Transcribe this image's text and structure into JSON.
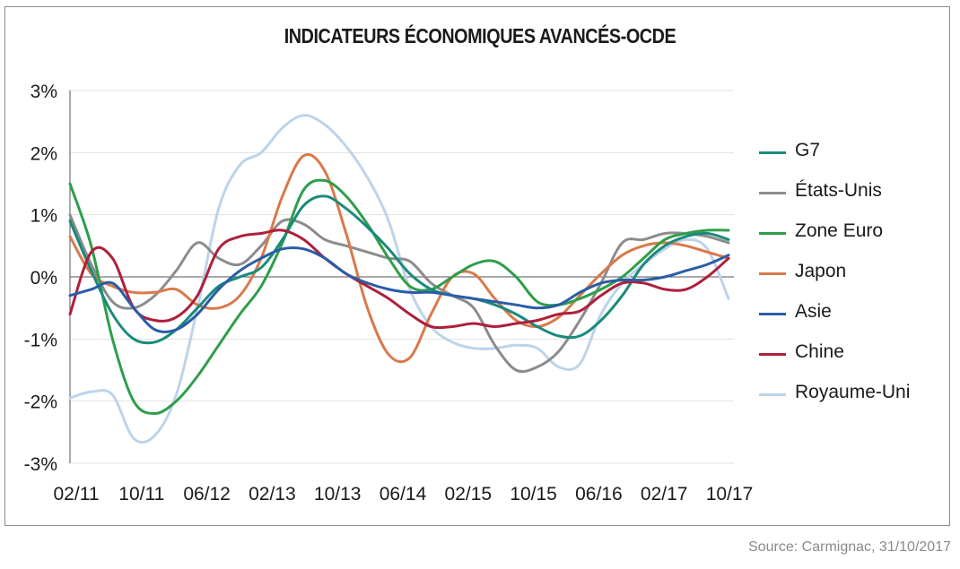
{
  "chart_data": {
    "type": "line",
    "title": "INDICATEURS ÉCONOMIQUES AVANCÉS-OCDE",
    "xlabel": "",
    "ylabel": "",
    "x_ticks": [
      "02/11",
      "10/11",
      "06/12",
      "02/13",
      "10/13",
      "06/14",
      "02/15",
      "10/15",
      "06/16",
      "02/17",
      "10/17"
    ],
    "y_ticks": [
      "3%",
      "2%",
      "1%",
      "0%",
      "-1%",
      "-2%",
      "-3%"
    ],
    "ylim": [
      -3,
      3
    ],
    "unit": "%",
    "grid": "horizontal",
    "legend_position": "right",
    "series": [
      {
        "name": "G7",
        "color": "#1a8a7c",
        "values": [
          0.9,
          0.1,
          -0.6,
          -1.0,
          -1.05,
          -0.85,
          -0.5,
          -0.15,
          0.0,
          0.15,
          0.6,
          1.15,
          1.3,
          1.1,
          0.8,
          0.45,
          0.05,
          -0.2,
          -0.3,
          -0.35,
          -0.45,
          -0.6,
          -0.8,
          -0.95,
          -0.95,
          -0.7,
          -0.3,
          0.2,
          0.5,
          0.65,
          0.7,
          0.6
        ]
      },
      {
        "name": "États-Unis",
        "color": "#8c8c8c",
        "values": [
          1.0,
          0.2,
          -0.4,
          -0.5,
          -0.3,
          0.1,
          0.55,
          0.3,
          0.2,
          0.5,
          0.9,
          0.85,
          0.6,
          0.5,
          0.4,
          0.3,
          0.25,
          -0.1,
          -0.3,
          -0.5,
          -1.1,
          -1.5,
          -1.45,
          -1.2,
          -0.7,
          -0.1,
          0.55,
          0.6,
          0.7,
          0.7,
          0.65,
          0.55
        ]
      },
      {
        "name": "Zone Euro",
        "color": "#2e9e4a",
        "values": [
          1.5,
          0.5,
          -1.0,
          -2.0,
          -2.2,
          -2.0,
          -1.6,
          -1.1,
          -0.6,
          -0.15,
          0.55,
          1.4,
          1.55,
          1.3,
          0.85,
          0.3,
          -0.15,
          -0.2,
          0.0,
          0.2,
          0.25,
          0.0,
          -0.4,
          -0.45,
          -0.35,
          -0.2,
          0.0,
          0.3,
          0.6,
          0.7,
          0.75,
          0.75
        ]
      },
      {
        "name": "Japon",
        "color": "#d9794a",
        "values": [
          0.65,
          0.05,
          -0.15,
          -0.25,
          -0.25,
          -0.2,
          -0.45,
          -0.5,
          -0.3,
          0.3,
          1.3,
          1.95,
          1.7,
          0.7,
          -0.5,
          -1.25,
          -1.3,
          -0.6,
          0.0,
          0.05,
          -0.35,
          -0.7,
          -0.8,
          -0.65,
          -0.3,
          0.05,
          0.35,
          0.5,
          0.55,
          0.5,
          0.4,
          0.3
        ]
      },
      {
        "name": "Asie",
        "color": "#2a5da6",
        "values": [
          -0.3,
          -0.2,
          -0.1,
          -0.5,
          -0.85,
          -0.85,
          -0.6,
          -0.2,
          0.1,
          0.3,
          0.45,
          0.45,
          0.3,
          0.05,
          -0.1,
          -0.2,
          -0.25,
          -0.25,
          -0.3,
          -0.35,
          -0.4,
          -0.45,
          -0.5,
          -0.45,
          -0.25,
          -0.1,
          -0.05,
          -0.05,
          0.0,
          0.1,
          0.2,
          0.35
        ]
      },
      {
        "name": "Chine",
        "color": "#ae1f3c",
        "values": [
          -0.6,
          0.4,
          0.3,
          -0.5,
          -0.7,
          -0.65,
          -0.3,
          0.45,
          0.65,
          0.7,
          0.75,
          0.6,
          0.3,
          0.05,
          -0.15,
          -0.35,
          -0.6,
          -0.8,
          -0.8,
          -0.75,
          -0.8,
          -0.75,
          -0.7,
          -0.6,
          -0.55,
          -0.3,
          -0.1,
          -0.1,
          -0.2,
          -0.2,
          0.0,
          0.3
        ]
      },
      {
        "name": "Royaume-Uni",
        "color": "#bcd4ea",
        "values": [
          -1.95,
          -1.85,
          -1.9,
          -2.6,
          -2.55,
          -1.9,
          -0.5,
          1.1,
          1.8,
          2.0,
          2.4,
          2.6,
          2.45,
          2.1,
          1.6,
          0.9,
          -0.2,
          -0.8,
          -1.05,
          -1.15,
          -1.15,
          -1.1,
          -1.15,
          -1.45,
          -1.4,
          -0.6,
          -0.1,
          0.2,
          0.45,
          0.6,
          0.45,
          -0.35
        ]
      }
    ]
  },
  "source": "Source: Carmignac, 31/10/2017"
}
